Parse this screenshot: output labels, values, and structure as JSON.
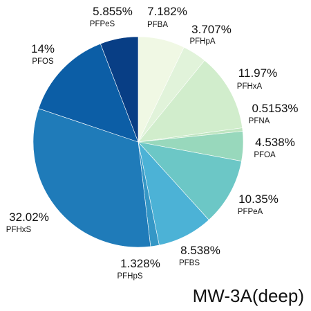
{
  "chart_data": {
    "type": "pie",
    "title": "MW-3A(deep)",
    "start_angle_deg": 0,
    "direction": "clockwise",
    "slices": [
      {
        "label": "PFBA",
        "value": 7.182,
        "percent_text": "7.182%",
        "color": "#f0f8e4"
      },
      {
        "label": "PFHpA",
        "value": 3.707,
        "percent_text": "3.707%",
        "color": "#e1f3da"
      },
      {
        "label": "PFHxA",
        "value": 11.97,
        "percent_text": "11.97%",
        "color": "#d1edcc"
      },
      {
        "label": "PFNA",
        "value": 0.5153,
        "percent_text": "0.5153%",
        "color": "#bfe5c0"
      },
      {
        "label": "PFOA",
        "value": 4.538,
        "percent_text": "4.538%",
        "color": "#98d8bc"
      },
      {
        "label": "PFPeA",
        "value": 10.35,
        "percent_text": "10.35%",
        "color": "#6cc7c6"
      },
      {
        "label": "PFBS",
        "value": 8.538,
        "percent_text": "8.538%",
        "color": "#4cb2d6"
      },
      {
        "label": "PFHpS",
        "value": 1.328,
        "percent_text": "1.328%",
        "color": "#3597c6"
      },
      {
        "label": "PFHxS",
        "value": 32.02,
        "percent_text": "32.02%",
        "color": "#1f7bb9"
      },
      {
        "label": "PFOS",
        "value": 14,
        "percent_text": "14%",
        "color": "#0c5ea6"
      },
      {
        "label": "PFPeS",
        "value": 5.855,
        "percent_text": "5.855%",
        "color": "#083e85"
      }
    ]
  }
}
